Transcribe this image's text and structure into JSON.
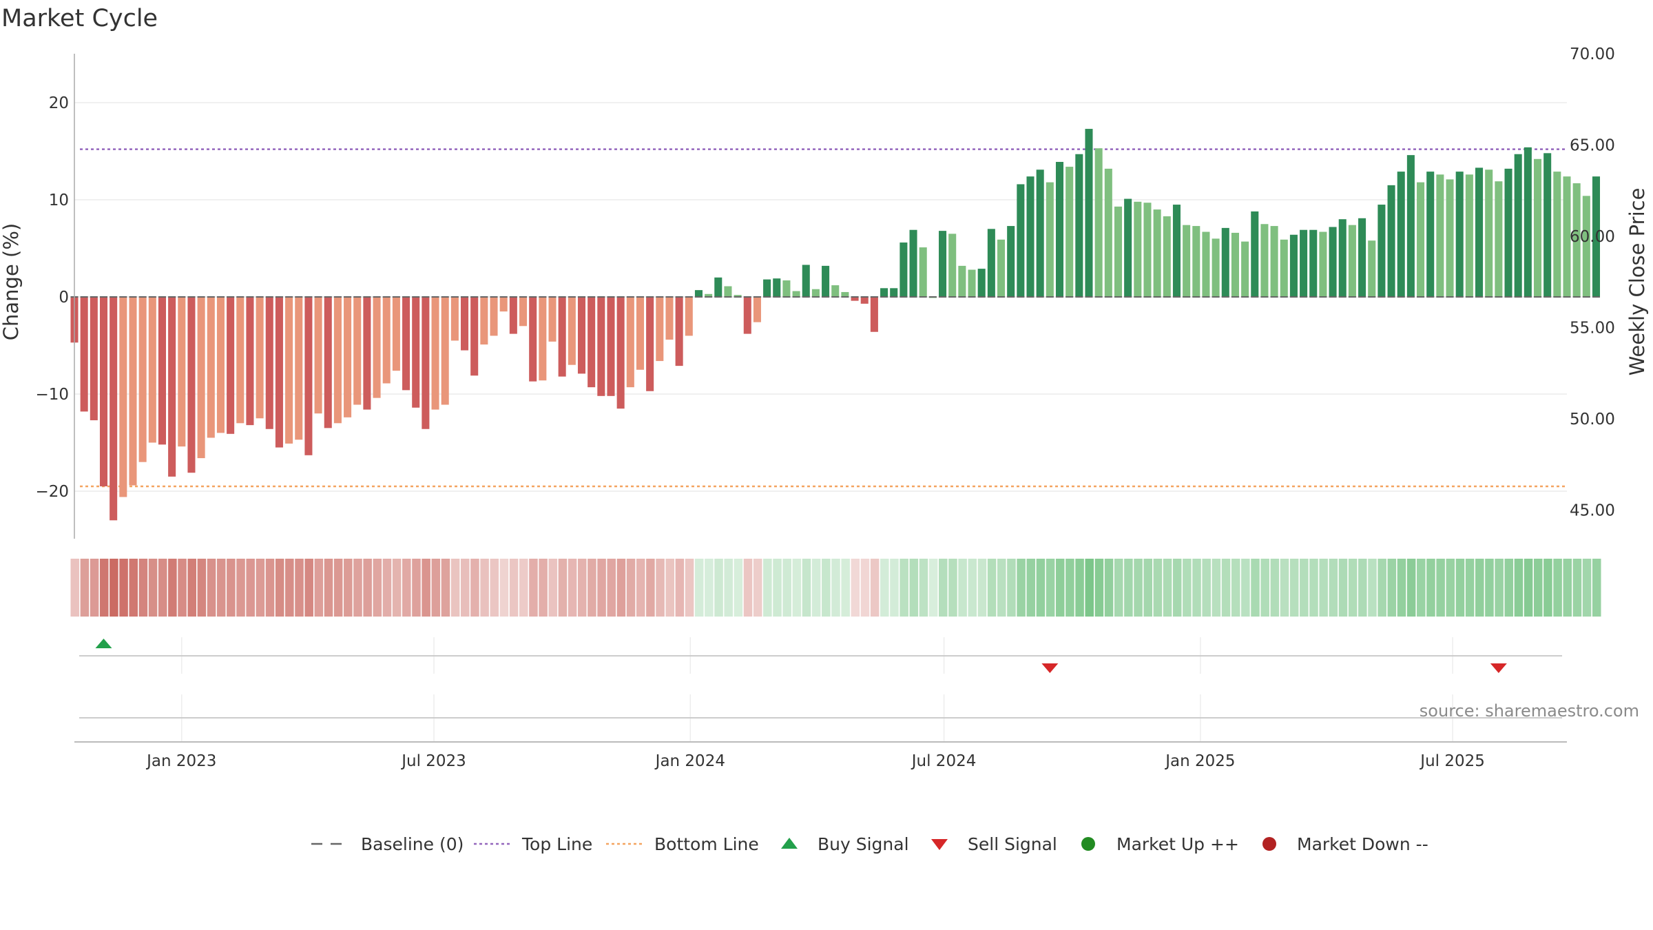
{
  "title": "Market Cycle",
  "source": "source: sharemaestro.com",
  "colors": {
    "strong_up": "#2e8b57",
    "weak_up": "#7fbf7f",
    "strong_down": "#cd5c5c",
    "weak_down": "#e9967a",
    "top_line": "#9467bd",
    "bottom_line": "#f4a460",
    "buy": "#22a04b",
    "sell": "#d62728"
  },
  "legend": [
    {
      "label": "Baseline (0)",
      "symbol": "dash",
      "color": "#666666"
    },
    {
      "label": "Top Line",
      "symbol": "dotted",
      "color": "#9467bd"
    },
    {
      "label": "Bottom Line",
      "symbol": "dotted",
      "color": "#f4a460"
    },
    {
      "label": "Buy Signal",
      "symbol": "triangle-up",
      "color": "#22a04b"
    },
    {
      "label": "Sell Signal",
      "symbol": "triangle-down",
      "color": "#d62728"
    },
    {
      "label": "Market Up ++",
      "symbol": "circle",
      "color": "#228b22"
    },
    {
      "label": "Market Down --",
      "symbol": "circle",
      "color": "#b22222"
    }
  ],
  "chart_data": {
    "type": "bar",
    "title": "Market Cycle",
    "ylabel": "Change (%)",
    "ylabel_right": "Weekly Close Price",
    "ylim": [
      -25,
      25
    ],
    "ylim_right": [
      43.5,
      70
    ],
    "yticks": [
      -20,
      -10,
      0,
      10,
      20
    ],
    "yticks_right": [
      "45.00",
      "50.00",
      "55.00",
      "60.00",
      "65.00",
      "70.00"
    ],
    "xlim": [
      "2022-10-16",
      "2025-09-21"
    ],
    "xticks": [
      {
        "date": "2023-01-01",
        "label": "Jan 2023"
      },
      {
        "date": "2023-07-01",
        "label": "Jul 2023"
      },
      {
        "date": "2024-01-01",
        "label": "Jan 2024"
      },
      {
        "date": "2024-07-01",
        "label": "Jul 2024"
      },
      {
        "date": "2025-01-01",
        "label": "Jan 2025"
      },
      {
        "date": "2025-07-01",
        "label": "Jul 2025"
      }
    ],
    "first_week": "2022-10-16",
    "week_step_days": 7,
    "top_line": 15.2,
    "bottom_line": -19.5,
    "baseline": 0,
    "grid": true,
    "legend_position": "bottom",
    "values": [
      -4.7,
      -11.8,
      -12.7,
      -19.5,
      -23.0,
      -20.6,
      -19.4,
      -17.0,
      -15.0,
      -15.2,
      -18.5,
      -15.4,
      -18.1,
      -16.6,
      -14.5,
      -14.0,
      -14.1,
      -13.0,
      -13.2,
      -12.5,
      -13.6,
      -15.5,
      -15.1,
      -14.7,
      -16.3,
      -12.0,
      -13.5,
      -13.0,
      -12.4,
      -11.1,
      -11.6,
      -10.4,
      -8.9,
      -7.6,
      -9.6,
      -11.4,
      -13.6,
      -11.6,
      -11.1,
      -4.5,
      -5.5,
      -8.1,
      -4.9,
      -4.0,
      -1.5,
      -3.8,
      -3.0,
      -8.7,
      -8.6,
      -4.6,
      -8.2,
      -7.0,
      -7.9,
      -9.3,
      -10.2,
      -10.2,
      -11.5,
      -9.3,
      -7.5,
      -9.7,
      -6.6,
      -4.4,
      -7.1,
      -4.0,
      0.7,
      0.3,
      2.0,
      1.1,
      0.2,
      -3.8,
      -2.6,
      1.8,
      1.9,
      1.7,
      0.6,
      3.3,
      0.8,
      3.2,
      1.2,
      0.5,
      -0.4,
      -0.7,
      -3.6,
      0.9,
      0.9,
      5.6,
      6.9,
      5.1,
      0.0,
      6.8,
      6.5,
      3.2,
      2.8,
      2.9,
      7.0,
      5.9,
      7.3,
      11.6,
      12.4,
      13.1,
      11.8,
      13.9,
      13.4,
      14.7,
      17.3,
      15.3,
      13.2,
      9.3,
      10.1,
      9.8,
      9.7,
      9.0,
      8.3,
      9.5,
      7.4,
      7.3,
      6.7,
      6.0,
      7.1,
      6.6,
      5.7,
      8.8,
      7.5,
      7.3,
      5.9,
      6.4,
      6.9,
      6.9,
      6.7,
      7.2,
      8.0,
      7.4,
      8.1,
      5.8,
      9.5,
      11.5,
      12.9,
      14.6,
      11.8,
      12.9,
      12.6,
      12.1,
      12.9,
      12.6,
      13.3,
      13.1,
      11.9,
      13.2,
      14.7,
      15.4,
      14.2,
      14.8,
      12.9,
      12.4,
      11.7,
      10.4,
      12.4
    ],
    "buy_signals": [
      "2022-11-06"
    ],
    "sell_signals": [
      "2024-09-15",
      "2025-08-03"
    ]
  }
}
